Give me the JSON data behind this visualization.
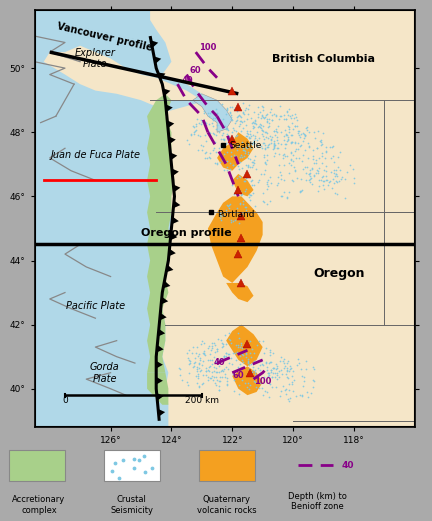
{
  "figsize": [
    4.32,
    5.21
  ],
  "dpi": 100,
  "background_color": "#aaaaaa",
  "map_bg_land": "#f5e6c8",
  "ocean_color": "#b0d8e8",
  "xlim": [
    -128.5,
    -116.0
  ],
  "ylim": [
    38.8,
    51.8
  ],
  "accretionary_color": "#a8d08a",
  "seismicity_color": "#7ec8e3",
  "volcanic_color": "#f4a020",
  "benioff_color": "#880088",
  "label_fontsize": 7,
  "tick_fontsize": 6.5
}
